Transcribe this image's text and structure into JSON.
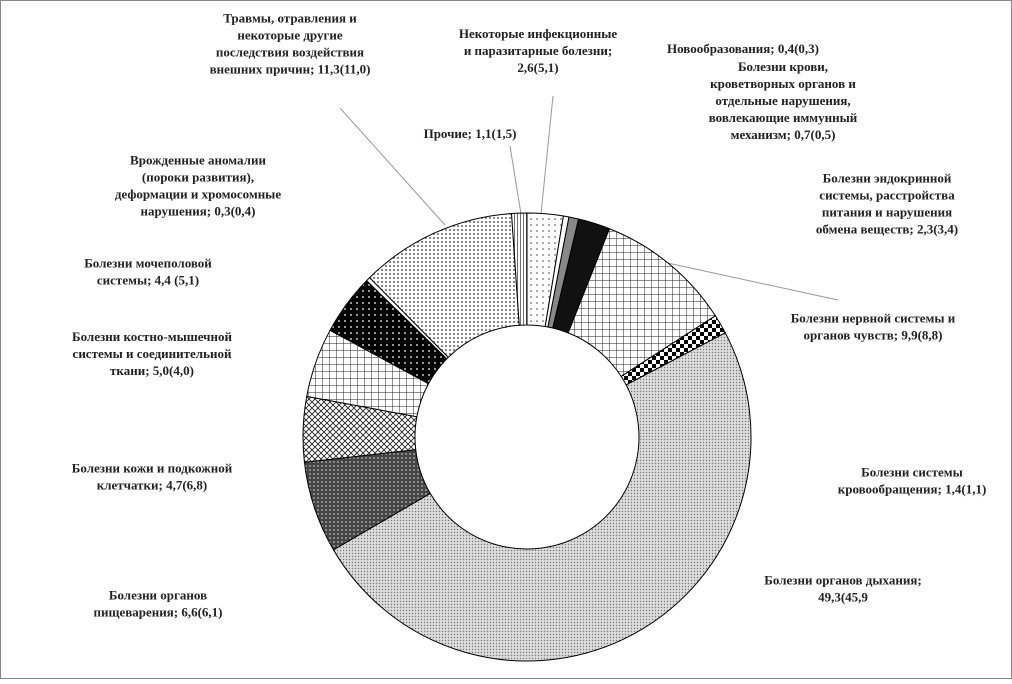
{
  "chart_data": {
    "type": "donut",
    "categories": [
      [
        "Некоторые инфекционные",
        "и паразитарные болезни;",
        "2,6(5,1)"
      ],
      [
        "Новообразования; 0,4(0,3)"
      ],
      [
        "Болезни крови,",
        "кроветворных органов и",
        "отдельные нарушения,",
        "вовлекающие иммунный",
        "механизм; 0,7(0,5)"
      ],
      [
        "Болезни эндокринной",
        "системы, расстройства",
        "питания и нарушения",
        "обмена веществ; 2,3(3,4)"
      ],
      [
        "Болезни нервной системы и",
        "органов чувств; 9,9(8,8)"
      ],
      [
        "Болезни системы",
        "кровообращения; 1,4(1,1)"
      ],
      [
        "Болезни органов дыхания;",
        "49,3(45,9"
      ],
      [
        "Болезни органов",
        "пищеварения; 6,6(6,1)"
      ],
      [
        "Болезни кожи и подкожной",
        "клетчатки; 4,7(6,8)"
      ],
      [
        "Болезни костно-мышечной",
        "системы и соединительной",
        "ткани; 5,0(4,0)"
      ],
      [
        "Болезни мочеполовой",
        "системы; 4,4 (5,1)"
      ],
      [
        "Врожденные аномалии",
        "(пороки развития),",
        "деформации и хромосомные",
        "нарушения; 0,3(0,4)"
      ],
      [
        "Травмы, отравления и",
        "некоторые другие",
        "последствия воздействия",
        "внешних причин; 11,3(11,0)"
      ],
      [
        "Прочие; 1,1(1,5)"
      ]
    ],
    "values": [
      2.6,
      0.4,
      0.7,
      2.3,
      9.9,
      1.4,
      49.3,
      6.6,
      4.7,
      5.0,
      4.4,
      0.3,
      11.3,
      1.1
    ]
  }
}
